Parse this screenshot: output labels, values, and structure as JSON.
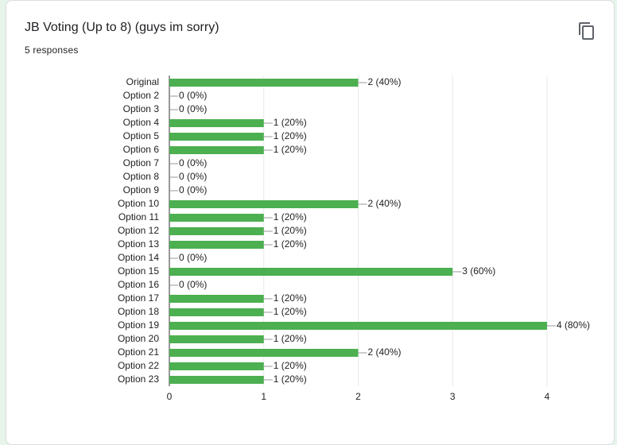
{
  "chart_data": {
    "type": "barh",
    "title": "JB Voting (Up to 8) (guys im sorry)",
    "subtitle": "5 responses",
    "categories": [
      "Original",
      "Option 2",
      "Option 3",
      "Option 4",
      "Option 5",
      "Option 6",
      "Option 7",
      "Option 8",
      "Option 9",
      "Option 10",
      "Option 11",
      "Option 12",
      "Option 13",
      "Option 14",
      "Option 15",
      "Option 16",
      "Option 17",
      "Option 18",
      "Option 19",
      "Option 20",
      "Option 21",
      "Option 22",
      "Option 23"
    ],
    "values": [
      2,
      0,
      0,
      1,
      1,
      1,
      0,
      0,
      0,
      2,
      1,
      1,
      1,
      0,
      3,
      0,
      1,
      1,
      4,
      1,
      2,
      1,
      1
    ],
    "value_labels": [
      "2 (40%)",
      "0 (0%)",
      "0 (0%)",
      "1 (20%)",
      "1 (20%)",
      "1 (20%)",
      "0 (0%)",
      "0 (0%)",
      "0 (0%)",
      "2 (40%)",
      "1 (20%)",
      "1 (20%)",
      "1 (20%)",
      "0 (0%)",
      "3 (60%)",
      "0 (0%)",
      "1 (20%)",
      "1 (20%)",
      "4 (80%)",
      "1 (20%)",
      "2 (40%)",
      "1 (20%)",
      "1 (20%)"
    ],
    "color": "#4caf50",
    "xlim": [
      0,
      4
    ],
    "xticks": [
      0,
      1,
      2,
      3,
      4
    ],
    "grid": true
  }
}
